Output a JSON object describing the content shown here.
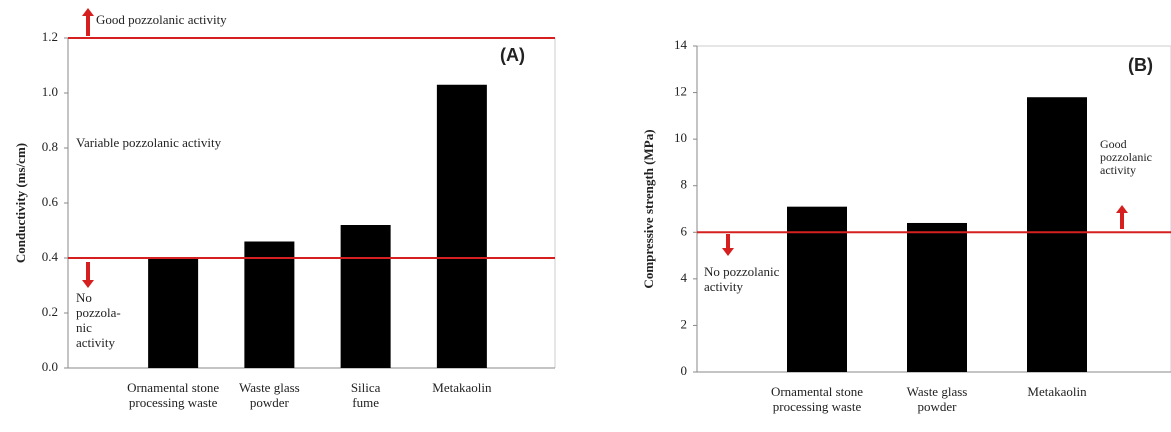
{
  "chart_data": [
    {
      "type": "bar",
      "y_label": "Conductivity  (ms/cm)",
      "categories": [
        "Ornamental stone processing waste",
        "Waste glass powder",
        "Silica fume",
        "Metakaolin"
      ],
      "values": [
        0.4,
        0.46,
        0.52,
        1.03
      ],
      "color": "#000000",
      "ylim": [
        0,
        1.2
      ],
      "yticks": [
        {
          "value": 0,
          "label": "0.0"
        },
        {
          "value": 0.2,
          "label": "0.2"
        },
        {
          "value": 0.4,
          "label": "0.4"
        },
        {
          "value": 0.6,
          "label": "0.6"
        },
        {
          "value": 0.8,
          "label": "0.8"
        },
        {
          "value": 1.0,
          "label": "1.0"
        },
        {
          "value": 1.2,
          "label": "1.2"
        }
      ],
      "reference_lines": [
        1.2,
        0.4
      ],
      "reference_color": "#d62020",
      "annotations": [
        "(A)",
        "Good pozzolanic  activity",
        "Variable  pozzolanic  activity",
        "No pozzola- nic activity"
      ],
      "grid": false
    },
    {
      "type": "bar",
      "y_label": "Compressive strength (MPa)",
      "categories": [
        "Ornamental stone processing waste",
        "Waste glass powder",
        "Metakaolin"
      ],
      "values": [
        7.1,
        6.4,
        11.8
      ],
      "color": "#000000",
      "ylim": [
        0,
        14
      ],
      "yticks": [
        0,
        2,
        4,
        6,
        8,
        10,
        12,
        14
      ],
      "reference_lines": [
        6
      ],
      "reference_color": "#d62020",
      "annotations": [
        "(B)",
        "Good pozzolanic activity",
        "No pozzolanic activity"
      ],
      "grid": false
    }
  ]
}
